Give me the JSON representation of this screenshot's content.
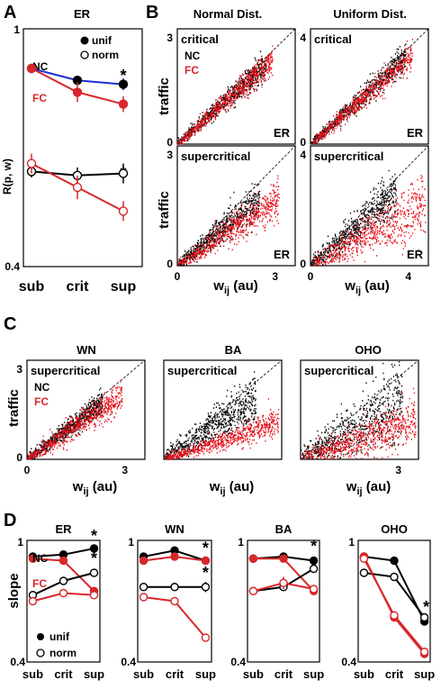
{
  "panel_letters": [
    "A",
    "B",
    "C",
    "D"
  ],
  "chart_data": [
    {
      "panel": "A",
      "type": "line",
      "title": "ER",
      "ylabel": "R(p, w)",
      "categories": [
        "sub",
        "crit",
        "sup"
      ],
      "ylim": [
        0.4,
        1
      ],
      "ytick_labels": [
        "1",
        "0.4"
      ],
      "legend": [
        "unif",
        "norm"
      ],
      "row_labels": [
        "NC",
        "FC"
      ],
      "series": [
        {
          "group": "NC",
          "marker": "unif",
          "color": "#1f2fd0",
          "values": [
            0.9,
            0.87,
            0.86
          ],
          "errors": [
            0.01,
            0.01,
            0.015
          ]
        },
        {
          "group": "FC",
          "marker": "unif",
          "color": "#d8272b",
          "values": [
            0.9,
            0.84,
            0.81
          ],
          "errors": [
            0.01,
            0.025,
            0.02
          ]
        },
        {
          "group": "NC",
          "marker": "norm",
          "color": "#000000",
          "values": [
            0.64,
            0.63,
            0.635
          ],
          "errors": [
            0.015,
            0.02,
            0.025
          ]
        },
        {
          "group": "FC",
          "marker": "norm",
          "color": "#d8272b",
          "values": [
            0.66,
            0.6,
            0.54
          ],
          "errors": [
            0.025,
            0.03,
            0.025
          ]
        }
      ],
      "significance": [
        "*",
        "*"
      ]
    },
    {
      "panel": "B",
      "type": "scatter",
      "column_titles": [
        "Normal Dist.",
        "Uniform Dist."
      ],
      "ylabel": "traffic",
      "xlabel": "w_ij (au)",
      "subplots": [
        {
          "regime": "critical",
          "network": "ER",
          "distribution": "normal",
          "x_ticks": [],
          "y_ticks": [
            "0",
            "3"
          ],
          "nc": {
            "slope": 0.92,
            "spread": 0.05,
            "xmax": 2.7
          },
          "fc": {
            "slope": 0.9,
            "spread": 0.05,
            "xmax": 2.9
          }
        },
        {
          "regime": "critical",
          "network": "ER",
          "distribution": "uniform",
          "x_ticks": [],
          "y_ticks": [
            "0",
            "4"
          ],
          "nc": {
            "slope": 0.93,
            "spread": 0.05,
            "xmax": 2.9
          },
          "fc": {
            "slope": 0.9,
            "spread": 0.05,
            "xmax": 3.1
          }
        },
        {
          "regime": "supercritical",
          "network": "ER",
          "distribution": "normal",
          "x_ticks": [
            "0",
            "3"
          ],
          "y_ticks": [
            "0",
            "3"
          ],
          "nc": {
            "slope": 0.8,
            "spread": 0.07,
            "xmax": 2.5
          },
          "fc": {
            "slope": 0.65,
            "spread": 0.07,
            "xmax": 3.1
          }
        },
        {
          "regime": "supercritical",
          "network": "ER",
          "distribution": "uniform",
          "x_ticks": [
            "0",
            "4"
          ],
          "y_ticks": [
            "0",
            "4"
          ],
          "nc": {
            "slope": 0.85,
            "spread": 0.08,
            "xmax": 2.6
          },
          "fc": {
            "slope": 0.52,
            "spread": 0.09,
            "xmax": 3.5
          }
        }
      ]
    },
    {
      "panel": "C",
      "type": "scatter",
      "ylabel": "traffic",
      "xlabel": "w_ij (au)",
      "subplots": [
        {
          "title": "WN",
          "regime": "supercritical",
          "x_ticks": [
            "0",
            "3"
          ],
          "y_ticks": [
            "0",
            "3"
          ],
          "nc": {
            "slope": 0.9,
            "spread": 0.06,
            "xmax": 2.3
          },
          "fc": {
            "slope": 0.8,
            "spread": 0.07,
            "xmax": 2.9
          }
        },
        {
          "title": "BA",
          "regime": "supercritical",
          "x_ticks": [],
          "y_ticks": [],
          "nc": {
            "slope": 0.8,
            "spread": 0.1,
            "xmax": 2.8
          },
          "fc": {
            "slope": 0.38,
            "spread": 0.05,
            "xmax": 3.5
          }
        },
        {
          "title": "OHO",
          "regime": "supercritical",
          "x_ticks": [
            "3"
          ],
          "y_ticks": [],
          "nc": {
            "slope": 0.7,
            "spread": 0.15,
            "xmax": 3.1
          },
          "fc": {
            "slope": 0.4,
            "spread": 0.09,
            "xmax": 3.5
          }
        }
      ]
    },
    {
      "panel": "D",
      "type": "line",
      "ylabel": "slope",
      "categories": [
        "sub",
        "crit",
        "sup"
      ],
      "ylim": [
        0.4,
        1
      ],
      "ytick_labels": [
        "1",
        "0.4"
      ],
      "legend": [
        "unif",
        "norm"
      ],
      "subplots": [
        {
          "title": "ER",
          "row_labels": [
            "NC",
            "FC"
          ],
          "series": [
            {
              "group": "NC",
              "marker": "unif",
              "color": "#000000",
              "values": [
                0.92,
                0.93,
                0.96
              ],
              "errors": [
                0.01,
                0.01,
                0.01
              ]
            },
            {
              "group": "FC",
              "marker": "unif",
              "color": "#d8272b",
              "values": [
                0.91,
                0.9,
                0.75
              ],
              "errors": [
                0.01,
                0.01,
                0.02
              ]
            },
            {
              "group": "NC",
              "marker": "norm",
              "color": "#000000",
              "values": [
                0.73,
                0.8,
                0.84
              ],
              "errors": [
                0.015,
                0.015,
                0.02
              ]
            },
            {
              "group": "FC",
              "marker": "norm",
              "color": "#d8272b",
              "values": [
                0.7,
                0.74,
                0.73
              ],
              "errors": [
                0.015,
                0.015,
                0.02
              ]
            }
          ],
          "significance": [
            "*",
            "*"
          ]
        },
        {
          "title": "WN",
          "row_labels": [],
          "series": [
            {
              "group": "NC",
              "marker": "unif",
              "color": "#000000",
              "values": [
                0.92,
                0.95,
                0.9
              ],
              "errors": [
                0.015,
                0.01,
                0.02
              ]
            },
            {
              "group": "FC",
              "marker": "unif",
              "color": "#d8272b",
              "values": [
                0.9,
                0.92,
                0.9
              ],
              "errors": [
                0.02,
                0.015,
                0.02
              ]
            },
            {
              "group": "NC",
              "marker": "norm",
              "color": "#000000",
              "values": [
                0.77,
                0.77,
                0.77
              ],
              "errors": [
                0.015,
                0.015,
                0.025
              ]
            },
            {
              "group": "FC",
              "marker": "norm",
              "color": "#d8272b",
              "values": [
                0.72,
                0.7,
                0.52
              ],
              "errors": [
                0.015,
                0.015,
                0.02
              ]
            }
          ],
          "significance": [
            "*",
            "*"
          ]
        },
        {
          "title": "BA",
          "row_labels": [],
          "series": [
            {
              "group": "NC",
              "marker": "unif",
              "color": "#000000",
              "values": [
                0.91,
                0.92,
                0.9
              ],
              "errors": [
                0.015,
                0.01,
                0.01
              ]
            },
            {
              "group": "FC",
              "marker": "unif",
              "color": "#d8272b",
              "values": [
                0.91,
                0.91,
                0.75
              ],
              "errors": [
                0.015,
                0.01,
                0.02
              ]
            },
            {
              "group": "NC",
              "marker": "norm",
              "color": "#000000",
              "values": [
                0.75,
                0.77,
                0.86
              ],
              "errors": [
                0.015,
                0.015,
                0.02
              ]
            },
            {
              "group": "FC",
              "marker": "norm",
              "color": "#d8272b",
              "values": [
                0.75,
                0.79,
                0.76
              ],
              "errors": [
                0.015,
                0.03,
                0.02
              ]
            }
          ],
          "significance": [
            "*"
          ]
        },
        {
          "title": "OHO",
          "row_labels": [],
          "series": [
            {
              "group": "NC",
              "marker": "unif",
              "color": "#000000",
              "values": [
                0.92,
                0.9,
                0.6
              ],
              "errors": [
                0.01,
                0.01,
                0.015
              ]
            },
            {
              "group": "FC",
              "marker": "unif",
              "color": "#d8272b",
              "values": [
                0.92,
                0.62,
                0.44
              ],
              "errors": [
                0.01,
                0.02,
                0.01
              ]
            },
            {
              "group": "NC",
              "marker": "norm",
              "color": "#000000",
              "values": [
                0.84,
                0.82,
                0.62
              ],
              "errors": [
                0.015,
                0.015,
                0.02
              ]
            },
            {
              "group": "FC",
              "marker": "norm",
              "color": "#d8272b",
              "values": [
                0.91,
                0.63,
                0.45
              ],
              "errors": [
                0.015,
                0.02,
                0.01
              ]
            }
          ],
          "significance": [
            "*"
          ]
        }
      ]
    }
  ]
}
